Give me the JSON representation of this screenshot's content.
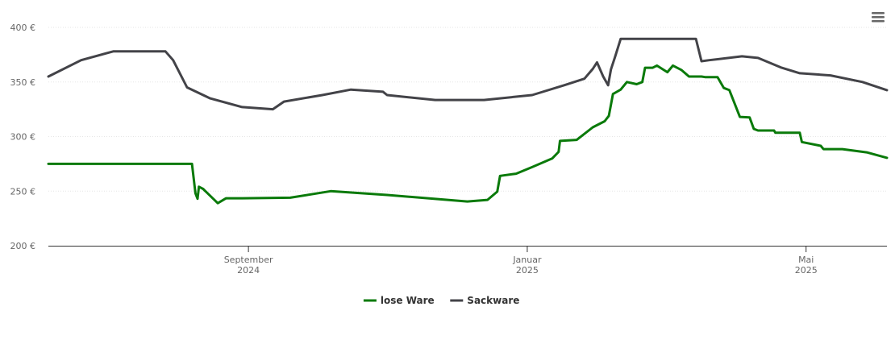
{
  "chart_data": {
    "type": "line",
    "xlim": [
      6.13,
      18.16
    ],
    "xticks": [
      {
        "value": 9,
        "label": "September 2024"
      },
      {
        "value": 13,
        "label": "Januar 2025"
      },
      {
        "value": 17,
        "label": "Mai 2025"
      }
    ],
    "ylim": [
      200,
      400
    ],
    "yticks": [
      {
        "value": 200,
        "label": "200 €"
      },
      {
        "value": 250,
        "label": "250 €"
      },
      {
        "value": 300,
        "label": "300 €"
      },
      {
        "value": 350,
        "label": "350 €"
      },
      {
        "value": 400,
        "label": "400 €"
      }
    ],
    "grid": true,
    "legend": "bottom",
    "series": [
      {
        "name": "lose Ware",
        "color": "#0a7a0a",
        "x": [
          6.13,
          8.19,
          8.24,
          8.27,
          8.29,
          8.35,
          8.56,
          8.68,
          8.91,
          9.6,
          10.18,
          10.99,
          12.14,
          12.43,
          12.57,
          12.61,
          12.84,
          13.07,
          13.36,
          13.45,
          13.47,
          13.71,
          13.94,
          14.11,
          14.17,
          14.23,
          14.34,
          14.43,
          14.57,
          14.65,
          14.69,
          14.8,
          14.86,
          15.01,
          15.09,
          15.21,
          15.32,
          15.5,
          15.55,
          15.73,
          15.82,
          15.9,
          16.05,
          16.19,
          16.25,
          16.31,
          16.54,
          16.56,
          16.91,
          16.94,
          17.21,
          17.25,
          17.52,
          17.87,
          18.16
        ],
        "values": [
          275,
          275,
          248,
          243,
          254,
          252,
          239,
          243.5,
          243.5,
          244,
          250,
          246.5,
          240.5,
          242,
          249.5,
          264,
          266,
          272,
          280,
          286,
          296,
          297,
          308.5,
          314,
          319,
          339,
          343,
          350,
          348,
          350,
          363,
          363,
          365,
          359,
          365,
          361,
          355,
          355,
          354.5,
          354.5,
          344.5,
          342.5,
          318,
          317.5,
          307,
          305.5,
          305.5,
          303.5,
          303.5,
          295,
          291.5,
          288.5,
          288.5,
          285.5,
          280.5
        ]
      },
      {
        "name": "Sackware",
        "color": "#434348",
        "x": [
          6.13,
          6.6,
          7.06,
          7.81,
          7.92,
          8.12,
          8.45,
          8.91,
          9.35,
          9.51,
          10.06,
          10.47,
          10.93,
          10.99,
          11.68,
          12.38,
          13.07,
          13.53,
          13.82,
          13.94,
          14.0,
          14.09,
          14.16,
          14.2,
          14.26,
          14.34,
          15.42,
          15.5,
          15.61,
          16.08,
          16.31,
          16.65,
          16.91,
          17.35,
          17.81,
          18.16
        ],
        "values": [
          355,
          370,
          378,
          378,
          370,
          345,
          335,
          327,
          325,
          332,
          338,
          343,
          341,
          338,
          333.5,
          333.5,
          338,
          347,
          353,
          362,
          368,
          355,
          347,
          361.5,
          373,
          389.5,
          389.5,
          369,
          370,
          373.5,
          372,
          363,
          358,
          356,
          350,
          342.5
        ]
      }
    ]
  }
}
